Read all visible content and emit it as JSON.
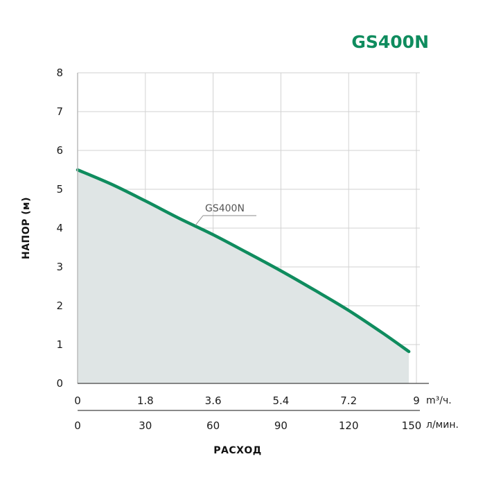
{
  "chart_data": {
    "type": "area",
    "title": "GS400N",
    "xlabel": "РАСХОД",
    "ylabel": "НАПОР (м)",
    "x_primary": {
      "unit": "m³/ч.",
      "ticks": [
        "0",
        "1.8",
        "3.6",
        "5.4",
        "7.2",
        "9"
      ],
      "range": [
        0,
        9
      ]
    },
    "x_secondary": {
      "unit": "л/мин.",
      "ticks": [
        "0",
        "30",
        "60",
        "90",
        "120",
        "150"
      ],
      "range": [
        0,
        150
      ]
    },
    "y_ticks": [
      "0",
      "1",
      "2",
      "3",
      "4",
      "5",
      "6",
      "7",
      "8"
    ],
    "ylim": [
      0,
      8
    ],
    "grid": true,
    "series": [
      {
        "name": "GS400N",
        "x": [
          0,
          0.9,
          1.8,
          2.7,
          3.6,
          4.5,
          5.4,
          6.3,
          7.2,
          8.1,
          8.8
        ],
        "y": [
          5.5,
          5.13,
          4.7,
          4.25,
          3.83,
          3.37,
          2.9,
          2.4,
          1.88,
          1.3,
          0.82
        ]
      }
    ],
    "colors": {
      "line": "#0f8c5e",
      "fill": "#dfe5e5",
      "title": "#0f8c5e",
      "grid": "#d2d2d2"
    }
  }
}
